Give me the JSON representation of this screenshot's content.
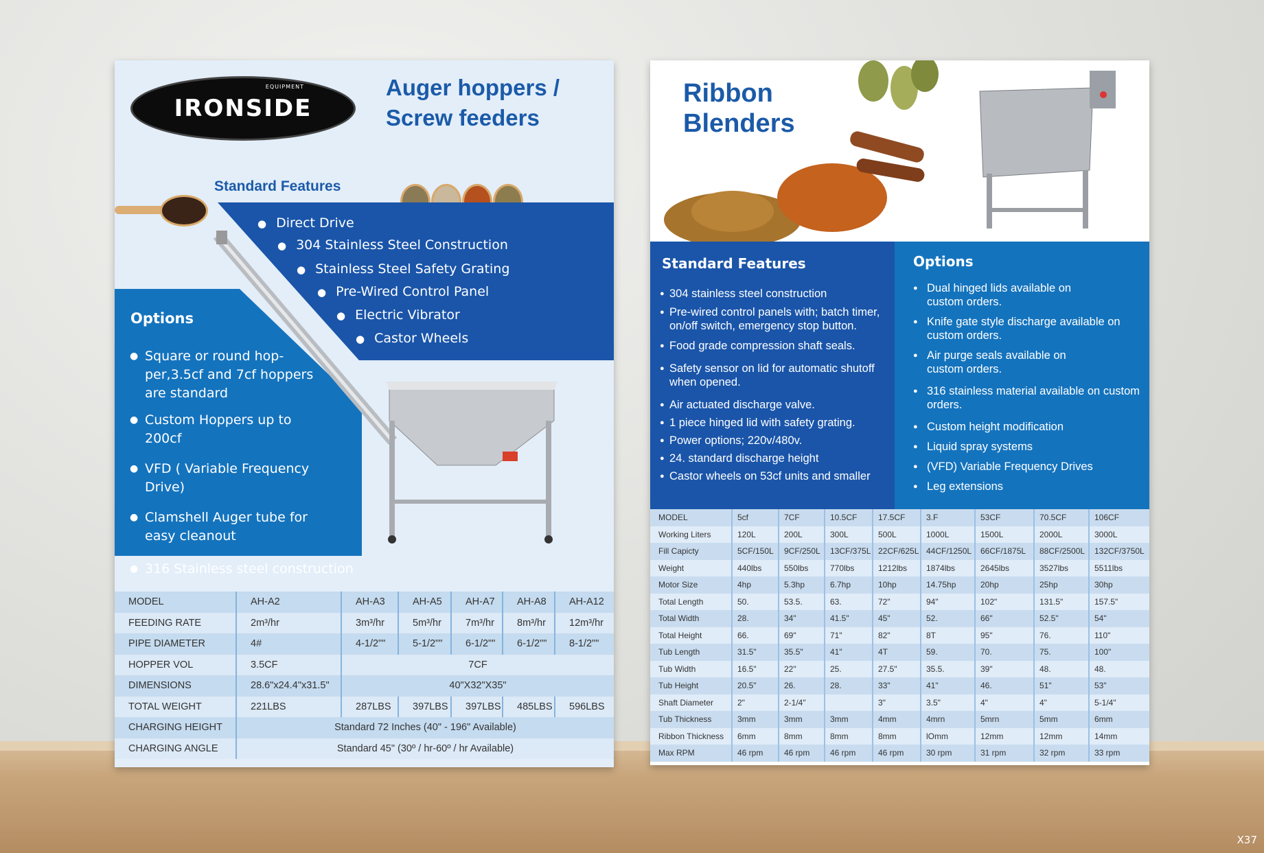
{
  "watermark": "X37",
  "left": {
    "logo": {
      "text": "IRONSIDE",
      "sub": "EQUIPMENT"
    },
    "title_line1": "Auger hoppers /",
    "title_line2": "Screw feeders",
    "features_title": "Standard Features",
    "features": [
      "Direct Drive",
      "304 Stainless Steel Construction",
      "Stainless Steel Safety Grating",
      "Pre-Wired Control Panel",
      "Electric Vibrator",
      "Castor Wheels"
    ],
    "options_title": "Options",
    "options": [
      "Square or round hop-per,3.5cf and 7cf hoppers are standard",
      "Custom Hoppers up to 200cf",
      "VFD ( Variable Frequency Drive)",
      "Clamshell Auger tube for easy cleanout",
      "316 Stainless steel construction"
    ],
    "table": {
      "model": [
        "MODEL",
        "AH-A2",
        "AH-A3",
        "AH-A5",
        "AH-A7",
        "AH-A8",
        "AH-A12"
      ],
      "feeding_rate": [
        "FEEDING RATE",
        "2m³/hr",
        "3m³/hr",
        "5m³/hr",
        "7m³/hr",
        "8m³/hr",
        "12m³/hr"
      ],
      "pipe_diameter": [
        "PIPE DIAMETER",
        "4#",
        "4-1/2\"\"",
        "5-1/2\"\"",
        "6-1/2\"\"",
        "6-1/2\"\"",
        "8-1/2\"\""
      ],
      "hopper_vol": [
        "HOPPER VOL",
        "3.5CF",
        "7CF"
      ],
      "dimensions": [
        "DIMENSIONS",
        "28.6\"x24.4\"x31.5\"",
        "40\"X32\"X35\""
      ],
      "total_weight": [
        "TOTAL WEIGHT",
        "221LBS",
        "287LBS",
        "397LBS",
        "397LBS",
        "485LBS",
        "596LBS"
      ],
      "charging_height": [
        "CHARGING HEIGHT",
        "Standard 72 Inches (40\" - 196\" Available)"
      ],
      "charging_angle": [
        "CHARGING ANGLE",
        "Standard 45\" (30º / hr-60º / hr Available)"
      ]
    }
  },
  "right": {
    "title_line1": "Ribbon",
    "title_line2": "Blenders",
    "features_title": "Standard Features",
    "features": [
      "304 stainless steel construction",
      "Pre-wired control panels with; batch timer, on/off switch, emergency stop button.",
      "Food grade compression shaft seals.",
      "Safety sensor on lid for automatic shutoff when opened.",
      "Air actuated discharge valve.",
      "1 piece hinged lid with safety grating.",
      "Power options; 220v/480v.",
      "24. standard discharge height",
      "Castor wheels on 53cf units and smaller"
    ],
    "options_title": "Options",
    "options": [
      "Dual hinged lids available on custom orders.",
      "Knife gate style discharge available on custom orders.",
      "Air purge seals available on custom orders.",
      "316 stainless material available on custom orders.",
      "Custom height modification",
      "Liquid spray systems",
      "(VFD) Variable Frequency Drives",
      "Leg extensions"
    ],
    "table": [
      [
        "MODEL",
        "5cf",
        "7CF",
        "10.5CF",
        "17.5CF",
        "3.F",
        "53CF",
        "70.5CF",
        "106CF"
      ],
      [
        "Working Liters",
        "120L",
        "200L",
        "300L",
        "500L",
        "1000L",
        "1500L",
        "2000L",
        "3000L"
      ],
      [
        "Fill Capicty",
        "5CF/150L",
        "9CF/250L",
        "13CF/375L",
        "22CF/625L",
        "44CF/1250L",
        "66CF/1875L",
        "88CF/2500L",
        "132CF/3750L"
      ],
      [
        "Weight",
        "440lbs",
        "550lbs",
        "770lbs",
        "1212lbs",
        "1874lbs",
        "2645lbs",
        "3527lbs",
        "5511lbs"
      ],
      [
        "Motor Size",
        "4hp",
        "5.3hp",
        "6.7hp",
        "10hp",
        "14.75hp",
        "20hp",
        "25hp",
        "30hp"
      ],
      [
        "Total Length",
        "50.",
        "53.5.",
        "63.",
        "72\"",
        "94\"",
        "102\"",
        "131.5\"",
        "157.5\""
      ],
      [
        "Total Width",
        "28.",
        "34\"",
        "41.5\"",
        "45\"",
        "52.",
        "66\"",
        "52.5\"",
        "54\""
      ],
      [
        "Total Height",
        "66.",
        "69\"",
        "71\"",
        "82\"",
        "8T",
        "95\"",
        "76.",
        "110\""
      ],
      [
        "Tub Length",
        "31.5\"",
        "35.5\"",
        "41\"",
        "4T",
        "59.",
        "70.",
        "75.",
        "100\""
      ],
      [
        "Tub Width",
        "16.5\"",
        "22\"",
        "25.",
        "27.5\"",
        "35.5.",
        "39\"",
        "48.",
        "48."
      ],
      [
        "Tub Height",
        "20.5\"",
        "26.",
        "28.",
        "33\"",
        "41\"",
        "46.",
        "51\"",
        "53\""
      ],
      [
        "Shaft Diameter",
        "2\"",
        "2-1/4\"",
        "",
        "3\"",
        "3.5\"",
        "4\"",
        "4\"",
        "5-1/4\""
      ],
      [
        "Tub Thickness",
        "3mm",
        "3mm",
        "3mm",
        "4mm",
        "4mrn",
        "5mrn",
        "5mm",
        "6mm"
      ],
      [
        "Ribbon Thickness",
        "6mm",
        "8mm",
        "8mm",
        "8mm",
        "lOmm",
        "12mm",
        "12mm",
        "14mm"
      ],
      [
        "Max RPM",
        "46 rpm",
        "46 rpm",
        "46 rpm",
        "46 rpm",
        "30 rpm",
        "31 rpm",
        "32 rpm",
        "33 rpm"
      ]
    ]
  },
  "colors": {
    "dark_blue": "#1a55a9",
    "mid_blue": "#1473bd",
    "title_blue": "#1b5aa8",
    "table_light": "#dce9f6",
    "table_dark": "#c5dbef"
  }
}
